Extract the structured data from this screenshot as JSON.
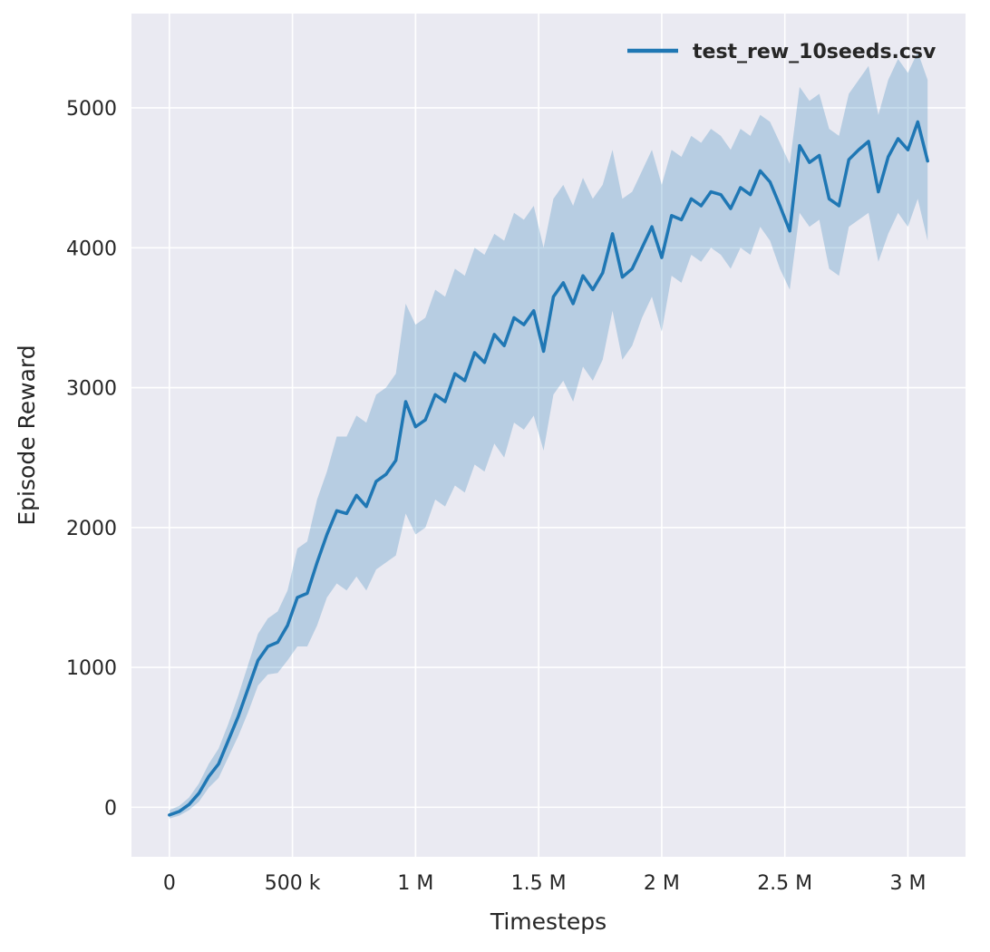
{
  "figure": {
    "background": "#ffffff",
    "plot_background": "#eaeaf2",
    "grid_color": "#ffffff",
    "text_color": "#262626"
  },
  "chart_data": {
    "type": "line",
    "title": "",
    "xlabel": "Timesteps",
    "ylabel": "Episode Reward",
    "grid": true,
    "legend_position": "upper right",
    "legend": [
      {
        "label": "test_rew_10seeds.csv",
        "color": "#1f77b4"
      }
    ],
    "xlim": [
      -154000,
      3234000
    ],
    "ylim": [
      -354,
      5674
    ],
    "xticks": {
      "values": [
        0,
        500000,
        1000000,
        1500000,
        2000000,
        2500000,
        3000000
      ],
      "labels": [
        "0",
        "500 k",
        "1 M",
        "1.5 M",
        "2 M",
        "2.5 M",
        "3 M"
      ]
    },
    "yticks": {
      "values": [
        0,
        1000,
        2000,
        3000,
        4000,
        5000
      ],
      "labels": [
        "0",
        "1000",
        "2000",
        "3000",
        "4000",
        "5000"
      ]
    },
    "series": [
      {
        "name": "test_rew_10seeds.csv",
        "color": "#1f77b4",
        "line_width": 3.5,
        "band_opacity": 0.25,
        "x": [
          0,
          40000,
          80000,
          120000,
          160000,
          200000,
          240000,
          280000,
          320000,
          360000,
          400000,
          440000,
          480000,
          520000,
          560000,
          600000,
          640000,
          680000,
          720000,
          760000,
          800000,
          840000,
          880000,
          920000,
          960000,
          1000000,
          1040000,
          1080000,
          1120000,
          1160000,
          1200000,
          1240000,
          1280000,
          1320000,
          1360000,
          1400000,
          1440000,
          1480000,
          1520000,
          1560000,
          1600000,
          1640000,
          1680000,
          1720000,
          1760000,
          1800000,
          1840000,
          1880000,
          1920000,
          1960000,
          2000000,
          2040000,
          2080000,
          2120000,
          2160000,
          2200000,
          2240000,
          2280000,
          2320000,
          2360000,
          2400000,
          2440000,
          2480000,
          2520000,
          2560000,
          2600000,
          2640000,
          2680000,
          2720000,
          2760000,
          2800000,
          2840000,
          2880000,
          2920000,
          2960000,
          3000000,
          3040000,
          3080000
        ],
        "mean": [
          -55,
          -30,
          20,
          100,
          220,
          310,
          480,
          650,
          850,
          1050,
          1150,
          1180,
          1300,
          1500,
          1530,
          1750,
          1950,
          2120,
          2100,
          2230,
          2150,
          2330,
          2380,
          2480,
          2900,
          2720,
          2770,
          2950,
          2900,
          3100,
          3050,
          3250,
          3180,
          3380,
          3300,
          3500,
          3450,
          3550,
          3260,
          3650,
          3750,
          3600,
          3800,
          3700,
          3820,
          4100,
          3790,
          3850,
          4000,
          4150,
          3930,
          4230,
          4200,
          4350,
          4300,
          4400,
          4380,
          4280,
          4430,
          4380,
          4550,
          4470,
          4300,
          4120,
          4730,
          4610,
          4660,
          4350,
          4300,
          4630,
          4700,
          4760,
          4400,
          4650,
          4780,
          4700,
          4900,
          4620
        ],
        "lower": [
          -80,
          -60,
          -20,
          40,
          140,
          210,
          360,
          510,
          680,
          870,
          950,
          960,
          1050,
          1150,
          1150,
          1300,
          1500,
          1600,
          1550,
          1650,
          1550,
          1700,
          1750,
          1800,
          2100,
          1950,
          2000,
          2200,
          2150,
          2300,
          2250,
          2450,
          2400,
          2600,
          2500,
          2750,
          2700,
          2800,
          2550,
          2950,
          3050,
          2900,
          3150,
          3050,
          3200,
          3550,
          3200,
          3300,
          3500,
          3650,
          3400,
          3800,
          3750,
          3950,
          3900,
          4000,
          3950,
          3850,
          4000,
          3950,
          4150,
          4050,
          3850,
          3700,
          4250,
          4150,
          4200,
          3850,
          3800,
          4150,
          4200,
          4250,
          3900,
          4100,
          4250,
          4150,
          4350,
          4050
        ],
        "upper": [
          -20,
          10,
          70,
          170,
          310,
          420,
          600,
          800,
          1020,
          1240,
          1350,
          1400,
          1550,
          1850,
          1900,
          2200,
          2400,
          2650,
          2650,
          2800,
          2750,
          2950,
          3000,
          3100,
          3600,
          3450,
          3500,
          3700,
          3650,
          3850,
          3800,
          4000,
          3950,
          4100,
          4050,
          4250,
          4200,
          4300,
          4000,
          4350,
          4450,
          4300,
          4500,
          4350,
          4450,
          4700,
          4350,
          4400,
          4550,
          4700,
          4450,
          4700,
          4650,
          4800,
          4750,
          4850,
          4800,
          4700,
          4850,
          4800,
          4950,
          4900,
          4750,
          4600,
          5150,
          5050,
          5100,
          4850,
          4800,
          5100,
          5200,
          5300,
          4950,
          5200,
          5350,
          5250,
          5400,
          5200
        ]
      }
    ]
  }
}
